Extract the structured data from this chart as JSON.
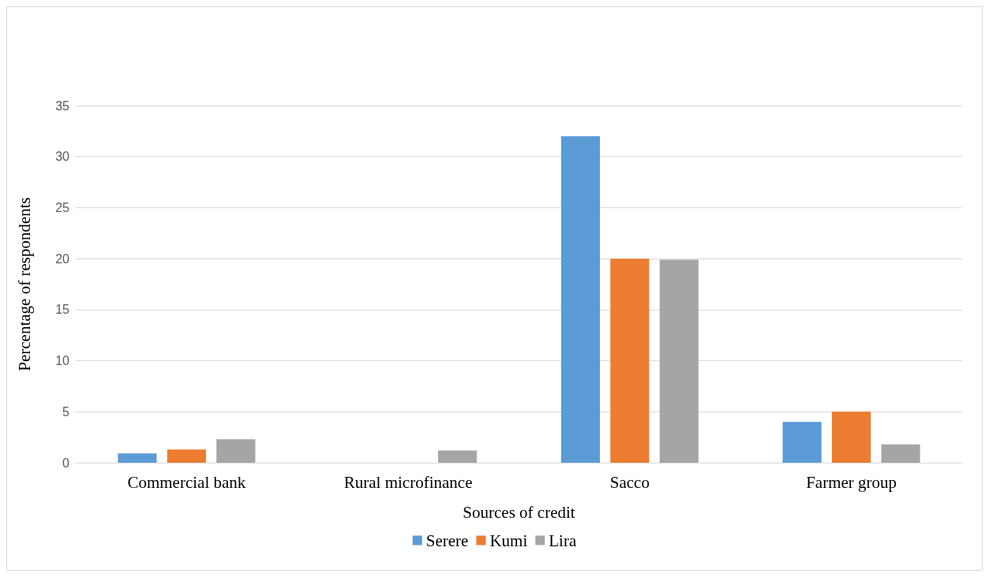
{
  "chart_data": {
    "type": "bar",
    "xlabel": "Sources of credit",
    "ylabel": "Percentage of respondents",
    "categories": [
      "Commercial bank",
      "Rural microfinance",
      "Sacco",
      "Farmer group"
    ],
    "series": [
      {
        "name": "Serere",
        "color": "#5b9bd5",
        "values": [
          0.9,
          0,
          32,
          4
        ]
      },
      {
        "name": "Kumi",
        "color": "#ed7d31",
        "values": [
          1.3,
          0,
          20,
          5
        ]
      },
      {
        "name": "Lira",
        "color": "#a5a5a5",
        "values": [
          2.3,
          1.2,
          19.9,
          1.8
        ]
      }
    ],
    "ylim": [
      0,
      35
    ],
    "yticks": [
      0,
      5,
      10,
      15,
      20,
      25,
      30,
      35
    ],
    "grid": "y",
    "legend": "bottom"
  }
}
